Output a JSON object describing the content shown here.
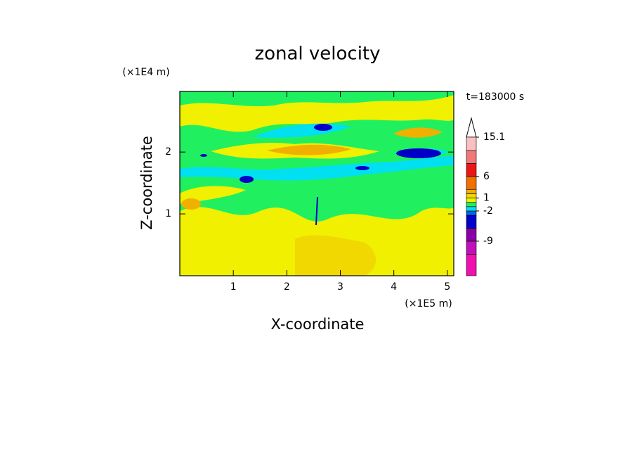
{
  "chart_data": {
    "type": "contour",
    "title": "zonal velocity",
    "x_label": "X-coordinate",
    "y_label": "Z-coordinate",
    "x_unit": "(×1E5 m)",
    "y_unit": "(×1E4 m)",
    "annotation": "t=183000 s",
    "xlim": [
      0,
      5.12
    ],
    "xticks": [
      1,
      2,
      3,
      4,
      5
    ],
    "ylim": [
      0,
      2.98
    ],
    "yticks": [
      1,
      2
    ],
    "colorbar": {
      "levels": [
        -17,
        -12,
        -9,
        -6,
        -3,
        -2,
        -1,
        0,
        1,
        2,
        3,
        6,
        9,
        12,
        15.1
      ],
      "colors": [
        "#f010b0",
        "#c010b8",
        "#8a00a8",
        "#0000c8",
        "#0060f0",
        "#00e0f0",
        "#20f060",
        "#f0f000",
        "#f0d800",
        "#f0b000",
        "#f07000",
        "#e81818",
        "#f07878",
        "#f8c0c0"
      ],
      "ticks": [
        -9,
        -2,
        1,
        6,
        15.1
      ]
    }
  }
}
